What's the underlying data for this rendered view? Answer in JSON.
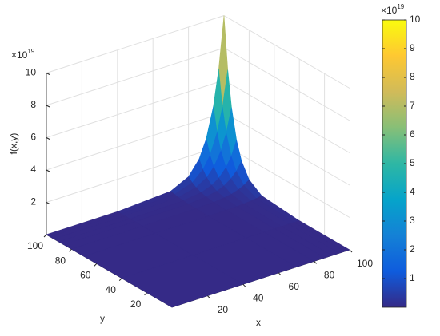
{
  "chart_data": {
    "type": "surface",
    "x": [
      0,
      40,
      70,
      80,
      86,
      90,
      94,
      97,
      100
    ],
    "y": [
      0,
      40,
      70,
      80,
      86,
      90,
      94,
      97,
      100
    ],
    "z": [
      [
        0,
        0,
        0,
        0,
        0,
        0,
        0,
        0,
        0
      ],
      [
        0,
        0,
        0,
        0,
        0,
        0,
        0,
        0,
        0
      ],
      [
        0,
        0,
        0,
        0.02,
        0.03,
        0.06,
        0.09,
        0.14,
        0.2
      ],
      [
        0,
        0,
        0.02,
        0.06,
        0.12,
        0.2,
        0.34,
        0.5,
        0.74
      ],
      [
        0,
        0,
        0.03,
        0.12,
        0.26,
        0.44,
        0.74,
        1.1,
        1.62
      ],
      [
        0,
        0,
        0.06,
        0.2,
        0.44,
        0.74,
        1.25,
        1.84,
        2.73
      ],
      [
        0,
        0,
        0.09,
        0.34,
        0.74,
        1.25,
        2.1,
        3.1,
        4.58
      ],
      [
        0,
        0,
        0.14,
        0.5,
        1.1,
        1.84,
        3.1,
        4.58,
        6.77
      ],
      [
        0,
        0,
        0.2,
        0.74,
        1.62,
        2.73,
        4.58,
        6.77,
        10
      ]
    ],
    "xlabel": "x",
    "ylabel": "y",
    "zlabel": "f(x,y)",
    "xlim": [
      0,
      100
    ],
    "ylim": [
      0,
      100
    ],
    "zlim": [
      0,
      10
    ],
    "xticks": [
      20,
      40,
      60,
      80,
      100
    ],
    "yticks": [
      20,
      40,
      60,
      80,
      100
    ],
    "zticks": [
      2,
      4,
      6,
      8,
      10
    ],
    "z_multiplier": {
      "base": "×10",
      "exponent": "19"
    },
    "grid": true,
    "colormap": "parula",
    "colorbar": {
      "lim": [
        0,
        10
      ],
      "ticks": [
        1,
        2,
        3,
        4,
        5,
        6,
        7,
        8,
        9,
        10
      ],
      "multiplier": {
        "base": "×10",
        "exponent": "19"
      }
    }
  }
}
